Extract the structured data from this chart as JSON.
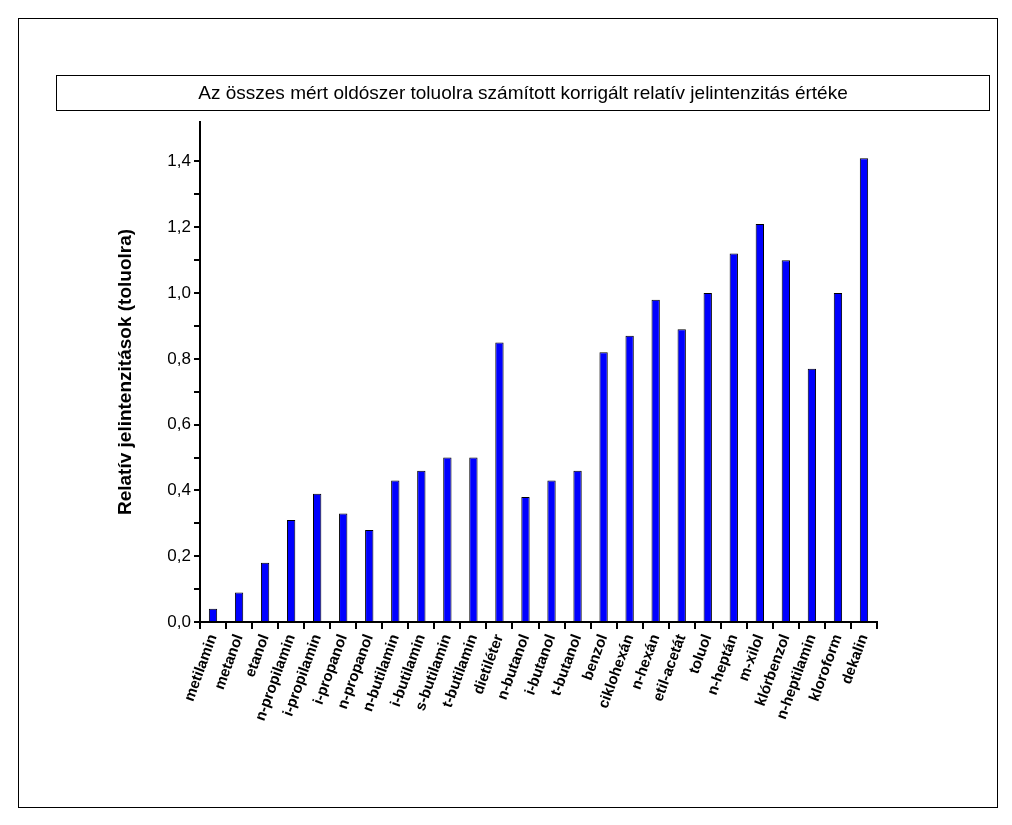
{
  "chart_data": {
    "type": "bar",
    "title": "Az összes mért oldószer toluolra számított korrigált relatív jelintenzitás értéke",
    "ylabel": "Relatív jelintenzitások (toluolra)",
    "categories": [
      "metilamin",
      "metanol",
      "etanol",
      "n-propilamin",
      "i-propilamin",
      "i-propanol",
      "n-propanol",
      "n-butilamin",
      "i-butilamin",
      "s-butilamin",
      "t-butilamin",
      "dietiléter",
      "n-butanol",
      "i-butanol",
      "t-butanol",
      "benzol",
      "ciklohexán",
      "n-hexán",
      "etil-acetát",
      "toluol",
      "n-heptán",
      "m-xilol",
      "klórbenzol",
      "n-heptilamin",
      "kloroform",
      "dekalin"
    ],
    "values": [
      0.04,
      0.09,
      0.18,
      0.31,
      0.39,
      0.33,
      0.28,
      0.43,
      0.46,
      0.5,
      0.5,
      0.85,
      0.38,
      0.43,
      0.46,
      0.82,
      0.87,
      0.98,
      0.89,
      1.0,
      1.12,
      1.21,
      1.1,
      0.77,
      1.0,
      1.41
    ],
    "color": "#0000ff",
    "ylim": [
      0,
      1.52
    ],
    "yticks": [
      {
        "value": 0,
        "label": "0,0"
      },
      {
        "value": 0.1,
        "label": null
      },
      {
        "value": 0.2,
        "label": "0,2"
      },
      {
        "value": 0.3,
        "label": null
      },
      {
        "value": 0.4,
        "label": "0,4"
      },
      {
        "value": 0.5,
        "label": null
      },
      {
        "value": 0.6,
        "label": "0,6"
      },
      {
        "value": 0.7,
        "label": null
      },
      {
        "value": 0.8,
        "label": "0,8"
      },
      {
        "value": 0.9,
        "label": null
      },
      {
        "value": 1.0,
        "label": "1,0"
      },
      {
        "value": 1.1,
        "label": null
      },
      {
        "value": 1.2,
        "label": "1,2"
      },
      {
        "value": 1.3,
        "label": null
      },
      {
        "value": 1.4,
        "label": "1,4"
      }
    ]
  }
}
